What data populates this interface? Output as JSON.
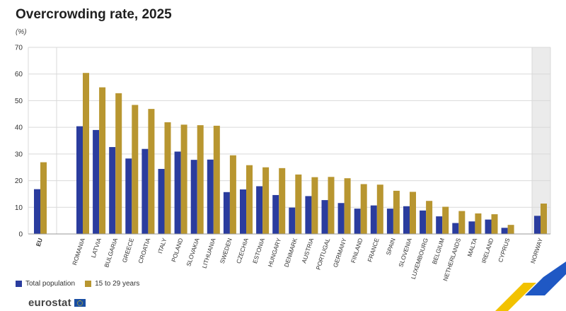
{
  "title": "Overcrowding rate, 2025",
  "unit_label": "(%)",
  "logo_text": "eurostat",
  "colors": {
    "total": "#2a3c9e",
    "youth": "#b89630",
    "grid": "#d9d9d9",
    "highlight_band": "#ebebeb",
    "decor_yellow": "#f2c200",
    "decor_blue": "#1f58c4"
  },
  "chart_data": {
    "type": "bar",
    "title": "Overcrowding rate, 2025",
    "ylabel": "(%)",
    "xlabel": "",
    "ylim": [
      0,
      70
    ],
    "yticks": [
      0,
      10,
      20,
      30,
      40,
      50,
      60,
      70
    ],
    "grid": true,
    "legend_position": "bottom-left",
    "categories": [
      "EU",
      "ROMANIA",
      "LATVIA",
      "BULGARIA",
      "GREECE",
      "CROATIA",
      "ITALY",
      "POLAND",
      "SLOVAKIA",
      "LITHUANIA",
      "SWEDEN",
      "CZECHIA",
      "ESTONIA",
      "HUNGARY",
      "DENMARK",
      "AUSTRIA",
      "PORTUGAL",
      "GERMANY",
      "FINLAND",
      "FRANCE",
      "SPAIN",
      "SLOVENIA",
      "LUXEMBOURG",
      "BELGIUM",
      "NETHERLANDS",
      "MALTA",
      "IRELAND",
      "CYPRUS",
      "NORWAY"
    ],
    "series": [
      {
        "name": "Total population",
        "values": [
          16.8,
          40.4,
          39.0,
          32.6,
          28.3,
          31.9,
          24.4,
          30.9,
          27.8,
          27.9,
          15.7,
          16.7,
          17.9,
          14.6,
          9.9,
          14.2,
          12.7,
          11.6,
          9.5,
          10.7,
          9.5,
          10.4,
          8.8,
          6.6,
          4.1,
          4.7,
          5.4,
          2.3,
          6.8
        ]
      },
      {
        "name": "15 to 29 years",
        "values": [
          26.9,
          60.4,
          55.0,
          52.8,
          48.4,
          46.9,
          41.9,
          41.0,
          40.8,
          40.6,
          29.5,
          25.8,
          25.0,
          24.7,
          22.3,
          21.3,
          21.4,
          20.9,
          18.7,
          18.5,
          16.2,
          15.8,
          12.4,
          10.2,
          8.6,
          7.7,
          7.4,
          3.4,
          11.4
        ]
      }
    ]
  }
}
